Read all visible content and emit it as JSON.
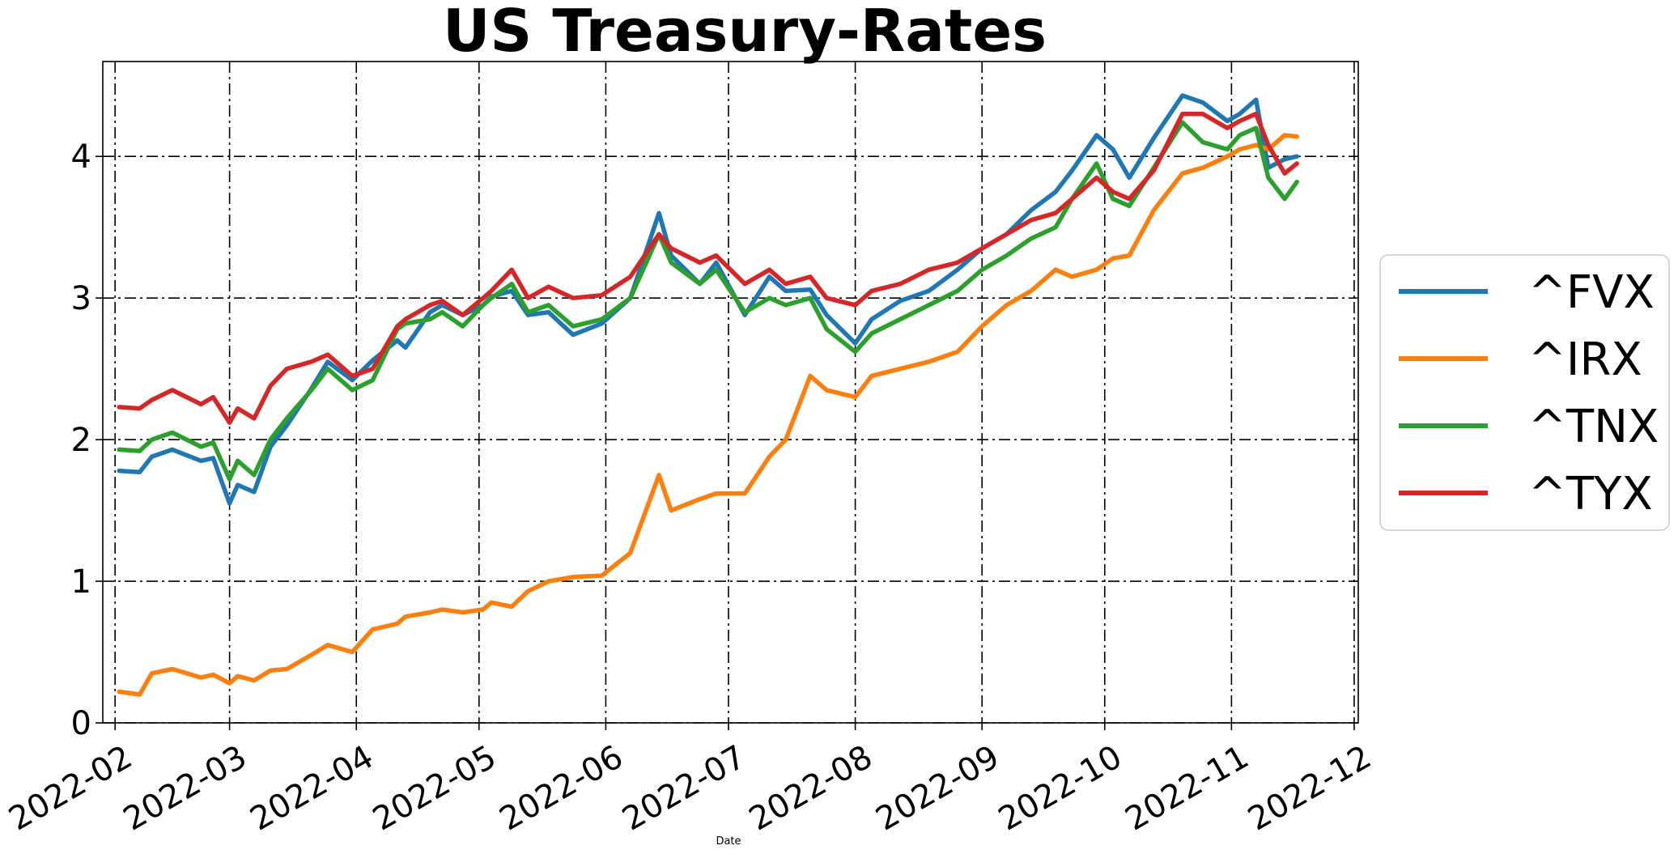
{
  "chart_data": {
    "type": "line",
    "title": "US Treasury-Rates",
    "xlabel": "Date",
    "ylabel": "",
    "grid": true,
    "legend_position": "right",
    "x_ticks": [
      "2022-02",
      "2022-03",
      "2022-04",
      "2022-05",
      "2022-06",
      "2022-07",
      "2022-08",
      "2022-09",
      "2022-10",
      "2022-11",
      "2022-12"
    ],
    "y_ticks": [
      "0",
      "1",
      "2",
      "3",
      "4"
    ],
    "xlim": [
      "2022-01-29",
      "2022-12-02"
    ],
    "ylim": [
      0,
      4.67
    ],
    "series": [
      {
        "name": "^FVX",
        "color": "#1f77b4",
        "x": [
          "2022-02-02",
          "2022-02-07",
          "2022-02-10",
          "2022-02-15",
          "2022-02-22",
          "2022-02-25",
          "2022-03-01",
          "2022-03-03",
          "2022-03-07",
          "2022-03-11",
          "2022-03-15",
          "2022-03-21",
          "2022-03-25",
          "2022-03-31",
          "2022-04-05",
          "2022-04-11",
          "2022-04-13",
          "2022-04-19",
          "2022-04-22",
          "2022-04-27",
          "2022-05-02",
          "2022-05-04",
          "2022-05-09",
          "2022-05-13",
          "2022-05-18",
          "2022-05-24",
          "2022-05-31",
          "2022-06-07",
          "2022-06-14",
          "2022-06-17",
          "2022-06-24",
          "2022-06-28",
          "2022-07-05",
          "2022-07-11",
          "2022-07-15",
          "2022-07-21",
          "2022-07-25",
          "2022-08-01",
          "2022-08-05",
          "2022-08-12",
          "2022-08-19",
          "2022-08-26",
          "2022-09-01",
          "2022-09-07",
          "2022-09-13",
          "2022-09-19",
          "2022-09-23",
          "2022-09-29",
          "2022-10-03",
          "2022-10-07",
          "2022-10-13",
          "2022-10-20",
          "2022-10-25",
          "2022-10-31",
          "2022-11-03",
          "2022-11-07",
          "2022-11-10",
          "2022-11-14",
          "2022-11-17"
        ],
        "y": [
          1.78,
          1.77,
          1.88,
          1.93,
          1.85,
          1.87,
          1.55,
          1.68,
          1.63,
          1.95,
          2.1,
          2.36,
          2.55,
          2.42,
          2.56,
          2.7,
          2.65,
          2.9,
          2.95,
          2.88,
          2.95,
          3.01,
          3.05,
          2.88,
          2.9,
          2.74,
          2.82,
          3.0,
          3.6,
          3.3,
          3.1,
          3.25,
          2.88,
          3.15,
          3.05,
          3.06,
          2.88,
          2.68,
          2.85,
          2.98,
          3.05,
          3.2,
          3.35,
          3.45,
          3.62,
          3.75,
          3.9,
          4.15,
          4.05,
          3.85,
          4.13,
          4.43,
          4.38,
          4.25,
          4.3,
          4.4,
          3.92,
          3.98,
          4.0
        ]
      },
      {
        "name": "^IRX",
        "color": "#ff7f0e",
        "x": [
          "2022-02-02",
          "2022-02-07",
          "2022-02-10",
          "2022-02-15",
          "2022-02-22",
          "2022-02-25",
          "2022-03-01",
          "2022-03-03",
          "2022-03-07",
          "2022-03-11",
          "2022-03-15",
          "2022-03-21",
          "2022-03-25",
          "2022-03-31",
          "2022-04-05",
          "2022-04-11",
          "2022-04-13",
          "2022-04-19",
          "2022-04-22",
          "2022-04-27",
          "2022-05-02",
          "2022-05-04",
          "2022-05-09",
          "2022-05-13",
          "2022-05-18",
          "2022-05-24",
          "2022-05-31",
          "2022-06-07",
          "2022-06-14",
          "2022-06-17",
          "2022-06-24",
          "2022-06-28",
          "2022-07-05",
          "2022-07-11",
          "2022-07-15",
          "2022-07-21",
          "2022-07-25",
          "2022-08-01",
          "2022-08-05",
          "2022-08-12",
          "2022-08-19",
          "2022-08-26",
          "2022-09-01",
          "2022-09-07",
          "2022-09-13",
          "2022-09-19",
          "2022-09-23",
          "2022-09-29",
          "2022-10-03",
          "2022-10-07",
          "2022-10-13",
          "2022-10-20",
          "2022-10-25",
          "2022-10-31",
          "2022-11-03",
          "2022-11-07",
          "2022-11-10",
          "2022-11-14",
          "2022-11-17"
        ],
        "y": [
          0.22,
          0.2,
          0.35,
          0.38,
          0.32,
          0.34,
          0.28,
          0.33,
          0.3,
          0.37,
          0.38,
          0.48,
          0.55,
          0.5,
          0.66,
          0.7,
          0.75,
          0.78,
          0.8,
          0.78,
          0.8,
          0.85,
          0.82,
          0.93,
          1.0,
          1.03,
          1.04,
          1.2,
          1.75,
          1.5,
          1.58,
          1.62,
          1.62,
          1.88,
          2.0,
          2.45,
          2.35,
          2.3,
          2.45,
          2.5,
          2.55,
          2.62,
          2.8,
          2.95,
          3.05,
          3.2,
          3.15,
          3.2,
          3.28,
          3.3,
          3.62,
          3.88,
          3.92,
          4.0,
          4.05,
          4.08,
          4.05,
          4.15,
          4.14
        ]
      },
      {
        "name": "^TNX",
        "color": "#2ca02c",
        "x": [
          "2022-02-02",
          "2022-02-07",
          "2022-02-10",
          "2022-02-15",
          "2022-02-22",
          "2022-02-25",
          "2022-03-01",
          "2022-03-03",
          "2022-03-07",
          "2022-03-11",
          "2022-03-15",
          "2022-03-21",
          "2022-03-25",
          "2022-03-31",
          "2022-04-05",
          "2022-04-11",
          "2022-04-13",
          "2022-04-19",
          "2022-04-22",
          "2022-04-27",
          "2022-05-02",
          "2022-05-04",
          "2022-05-09",
          "2022-05-13",
          "2022-05-18",
          "2022-05-24",
          "2022-05-31",
          "2022-06-07",
          "2022-06-14",
          "2022-06-17",
          "2022-06-24",
          "2022-06-28",
          "2022-07-05",
          "2022-07-11",
          "2022-07-15",
          "2022-07-21",
          "2022-07-25",
          "2022-08-01",
          "2022-08-05",
          "2022-08-12",
          "2022-08-19",
          "2022-08-26",
          "2022-09-01",
          "2022-09-07",
          "2022-09-13",
          "2022-09-19",
          "2022-09-23",
          "2022-09-29",
          "2022-10-03",
          "2022-10-07",
          "2022-10-13",
          "2022-10-20",
          "2022-10-25",
          "2022-10-31",
          "2022-11-03",
          "2022-11-07",
          "2022-11-10",
          "2022-11-14",
          "2022-11-17"
        ],
        "y": [
          1.93,
          1.92,
          2.0,
          2.05,
          1.95,
          1.98,
          1.72,
          1.85,
          1.75,
          2.0,
          2.15,
          2.35,
          2.5,
          2.35,
          2.42,
          2.78,
          2.82,
          2.85,
          2.9,
          2.8,
          2.95,
          3.0,
          3.1,
          2.9,
          2.95,
          2.8,
          2.85,
          3.0,
          3.45,
          3.25,
          3.1,
          3.2,
          2.9,
          3.0,
          2.95,
          3.0,
          2.78,
          2.62,
          2.75,
          2.85,
          2.95,
          3.05,
          3.2,
          3.3,
          3.42,
          3.5,
          3.7,
          3.95,
          3.7,
          3.65,
          3.92,
          4.24,
          4.1,
          4.05,
          4.15,
          4.2,
          3.85,
          3.7,
          3.82
        ]
      },
      {
        "name": "^TYX",
        "color": "#d62728",
        "x": [
          "2022-02-02",
          "2022-02-07",
          "2022-02-10",
          "2022-02-15",
          "2022-02-22",
          "2022-02-25",
          "2022-03-01",
          "2022-03-03",
          "2022-03-07",
          "2022-03-11",
          "2022-03-15",
          "2022-03-21",
          "2022-03-25",
          "2022-03-31",
          "2022-04-05",
          "2022-04-11",
          "2022-04-13",
          "2022-04-19",
          "2022-04-22",
          "2022-04-27",
          "2022-05-02",
          "2022-05-04",
          "2022-05-09",
          "2022-05-13",
          "2022-05-18",
          "2022-05-24",
          "2022-05-31",
          "2022-06-07",
          "2022-06-14",
          "2022-06-17",
          "2022-06-24",
          "2022-06-28",
          "2022-07-05",
          "2022-07-11",
          "2022-07-15",
          "2022-07-21",
          "2022-07-25",
          "2022-08-01",
          "2022-08-05",
          "2022-08-12",
          "2022-08-19",
          "2022-08-26",
          "2022-09-01",
          "2022-09-07",
          "2022-09-13",
          "2022-09-19",
          "2022-09-23",
          "2022-09-29",
          "2022-10-03",
          "2022-10-07",
          "2022-10-13",
          "2022-10-20",
          "2022-10-25",
          "2022-10-31",
          "2022-11-03",
          "2022-11-07",
          "2022-11-10",
          "2022-11-14",
          "2022-11-17"
        ],
        "y": [
          2.23,
          2.22,
          2.28,
          2.35,
          2.25,
          2.3,
          2.12,
          2.22,
          2.15,
          2.38,
          2.5,
          2.55,
          2.6,
          2.45,
          2.5,
          2.8,
          2.85,
          2.95,
          2.98,
          2.88,
          3.0,
          3.05,
          3.2,
          3.0,
          3.08,
          3.0,
          3.02,
          3.15,
          3.45,
          3.35,
          3.25,
          3.3,
          3.1,
          3.2,
          3.1,
          3.15,
          3.0,
          2.95,
          3.05,
          3.1,
          3.2,
          3.25,
          3.35,
          3.45,
          3.55,
          3.6,
          3.7,
          3.85,
          3.75,
          3.7,
          3.9,
          4.3,
          4.3,
          4.2,
          4.25,
          4.3,
          4.08,
          3.88,
          3.95
        ]
      }
    ]
  }
}
